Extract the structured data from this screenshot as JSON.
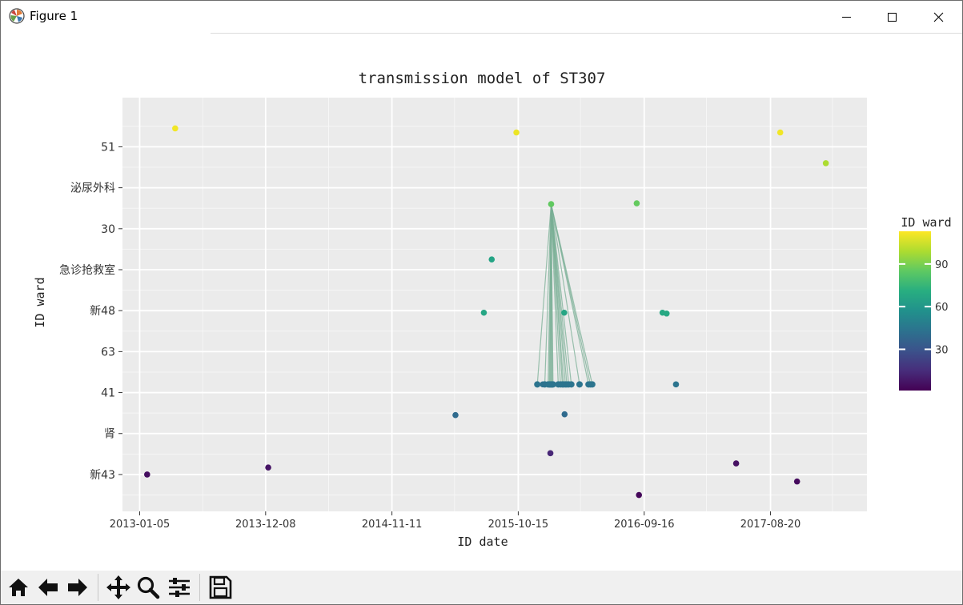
{
  "window": {
    "title": "Figure 1",
    "icon": "matplotlib-icon",
    "controls": [
      "minimize-icon",
      "maximize-icon",
      "close-icon"
    ]
  },
  "toolbar": {
    "icons": [
      "home-icon",
      "back-arrow-icon",
      "forward-arrow-icon",
      "pan-icon",
      "zoom-icon",
      "configure-subplots-icon",
      "save-icon"
    ]
  },
  "colors": {
    "panel_bg": "#ebebeb",
    "grid": "#ffffff",
    "edge": "#7aaf96",
    "text": "#333333"
  },
  "chart_data": {
    "type": "scatter",
    "title": "transmission model of ST307",
    "xlabel": "ID date",
    "ylabel": "ID ward",
    "x_axis": {
      "kind": "date",
      "tick_labels": [
        "2013-01-05",
        "2013-12-08",
        "2014-11-11",
        "2015-10-15",
        "2016-09-16",
        "2017-08-20"
      ],
      "range": [
        "2012-11-20",
        "2018-05-05"
      ]
    },
    "y_axis": {
      "kind": "category",
      "tick_labels": [
        "新43",
        "肾",
        "41",
        "63",
        "新48",
        "急诊抢救室",
        "30",
        "泌尿外科",
        "51"
      ],
      "range": [
        -0.9,
        9.2
      ]
    },
    "colorbar": {
      "label": "ID ward",
      "ticks": [
        30,
        60,
        90
      ],
      "range": [
        1,
        113
      ],
      "colormap": "viridis"
    },
    "grid": true,
    "points": [
      {
        "x": "2013-01-25",
        "y": 0.0,
        "value": 5
      },
      {
        "x": "2013-04-10",
        "y": 8.45,
        "value": 111
      },
      {
        "x": "2013-12-15",
        "y": 0.17,
        "value": 7
      },
      {
        "x": "2015-04-30",
        "y": 1.45,
        "value": 40
      },
      {
        "x": "2015-07-15",
        "y": 3.95,
        "value": 67
      },
      {
        "x": "2015-08-05",
        "y": 5.25,
        "value": 66
      },
      {
        "x": "2015-10-10",
        "y": 8.35,
        "value": 110
      },
      {
        "x": "2015-12-20",
        "y": 2.2,
        "value": 43
      },
      {
        "x": "2016-01-09",
        "y": 0.52,
        "value": 13
      },
      {
        "x": "2016-01-11",
        "y": 6.6,
        "value": 85
      },
      {
        "x": "2016-02-15",
        "y": 3.95,
        "value": 67
      },
      {
        "x": "2016-02-16",
        "y": 1.47,
        "value": 40
      },
      {
        "x": "2016-08-27",
        "y": 6.62,
        "value": 86
      },
      {
        "x": "2016-09-02",
        "y": -0.5,
        "value": 3
      },
      {
        "x": "2016-11-04",
        "y": 3.95,
        "value": 68
      },
      {
        "x": "2016-11-15",
        "y": 3.93,
        "value": 68
      },
      {
        "x": "2016-12-10",
        "y": 2.2,
        "value": 44
      },
      {
        "x": "2017-05-20",
        "y": 0.27,
        "value": 6
      },
      {
        "x": "2017-09-15",
        "y": 8.35,
        "value": 111
      },
      {
        "x": "2017-10-30",
        "y": -0.17,
        "value": 4
      },
      {
        "x": "2018-01-15",
        "y": 7.6,
        "value": 99
      }
    ],
    "cluster": {
      "y": 2.2,
      "value": 44,
      "hub": {
        "x": "2016-01-11",
        "y": 6.6
      },
      "points": [
        "2015-12-05",
        "2015-12-25",
        "2016-01-03",
        "2016-01-06",
        "2016-01-08",
        "2016-01-10",
        "2016-01-12",
        "2016-01-14",
        "2016-01-16",
        "2016-01-30",
        "2016-02-05",
        "2016-02-10",
        "2016-02-13",
        "2016-02-18",
        "2016-02-22",
        "2016-02-27",
        "2016-03-05",
        "2016-03-27",
        "2016-04-20",
        "2016-04-25",
        "2016-04-30"
      ]
    }
  }
}
